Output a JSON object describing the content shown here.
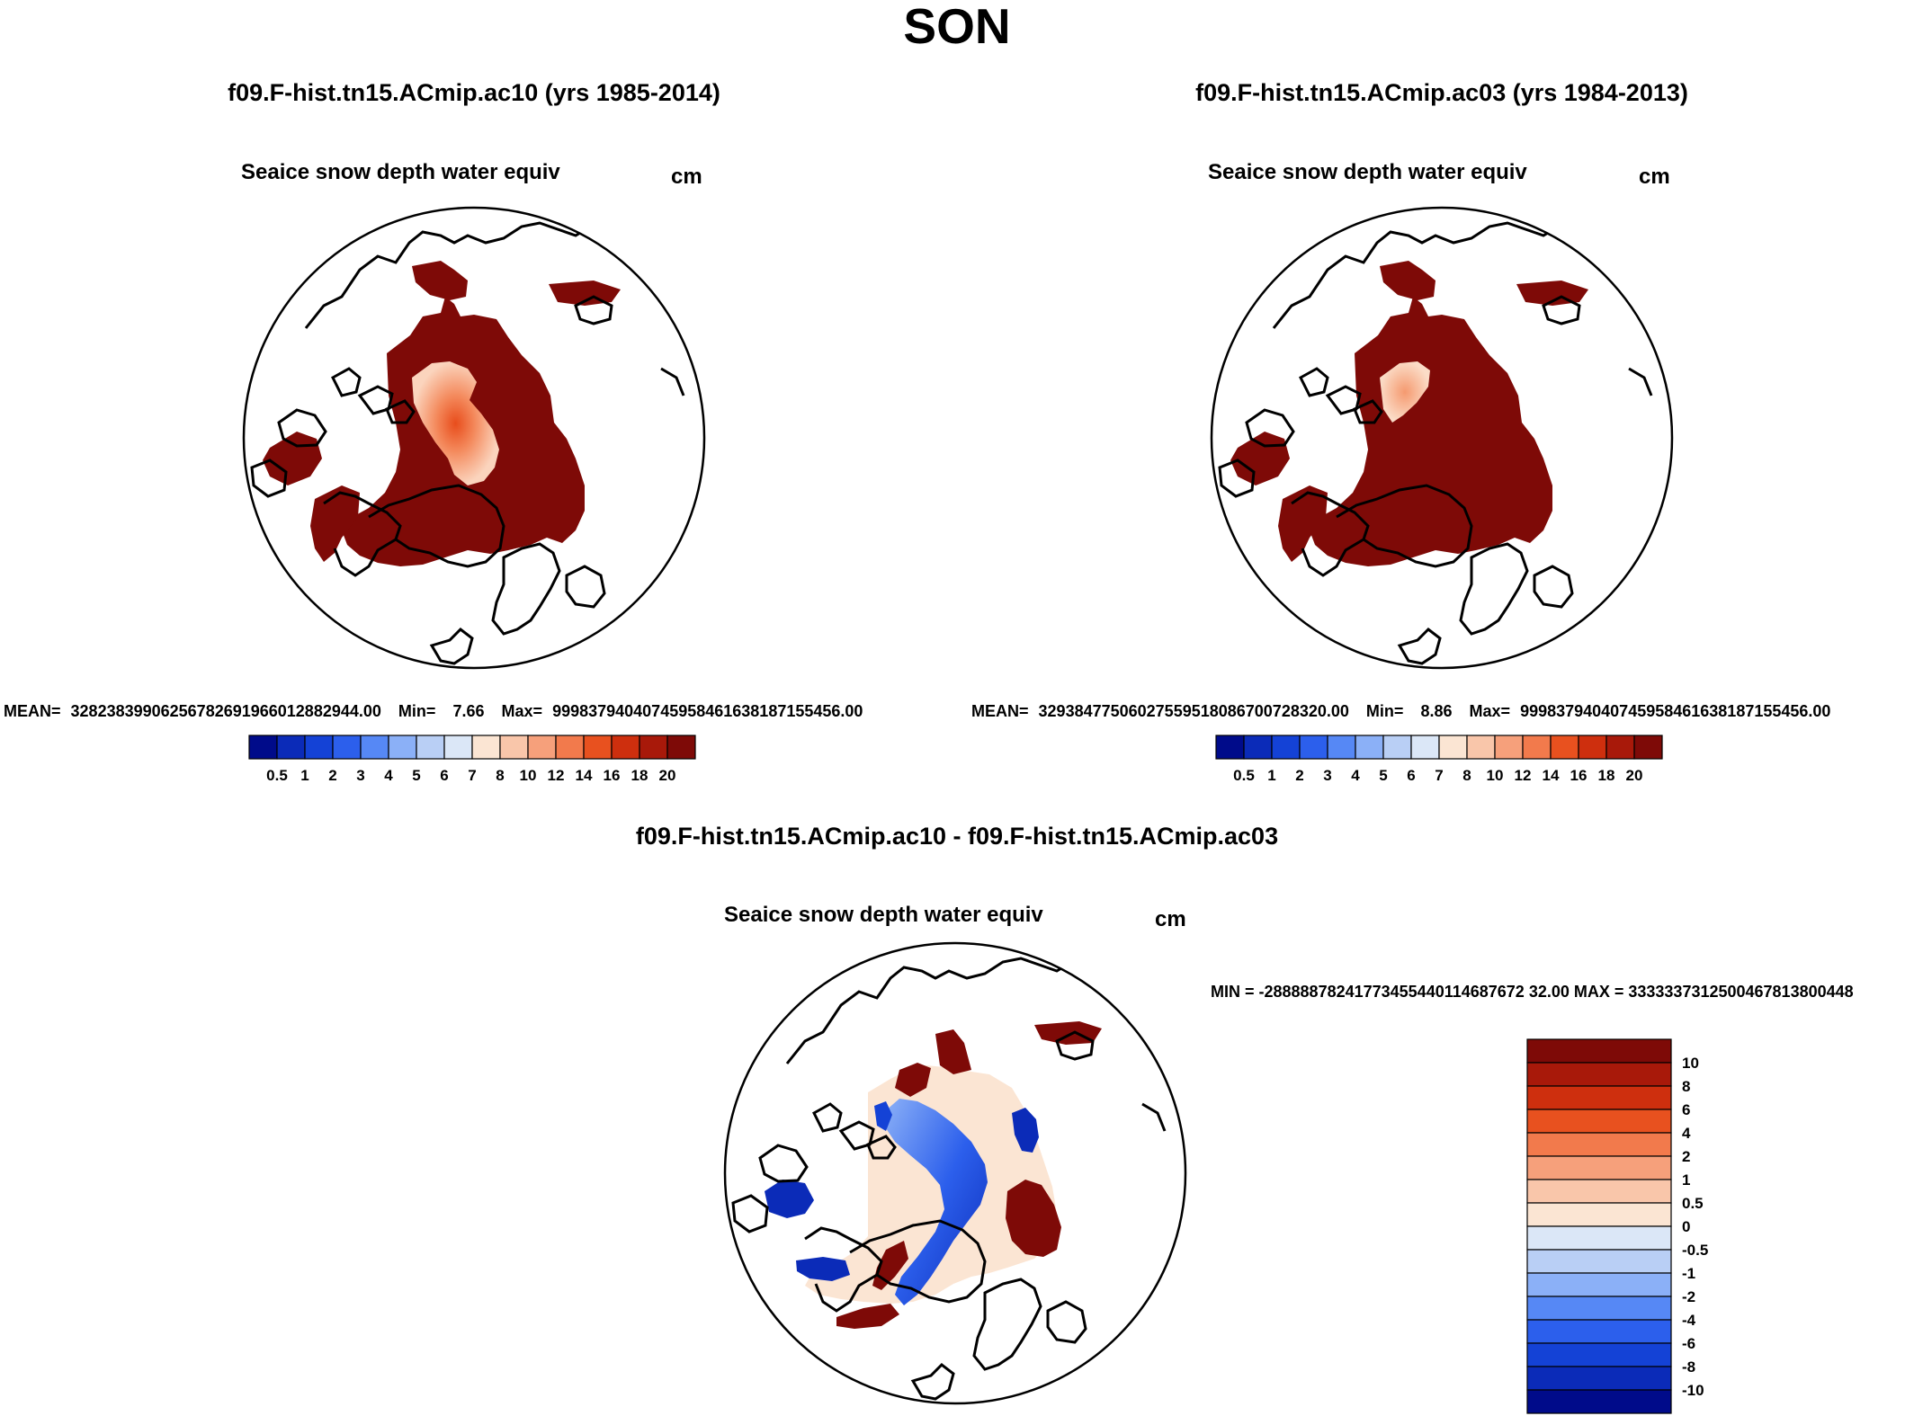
{
  "figure": {
    "title": "SON"
  },
  "colors": {
    "top_scale": [
      "#000b8a",
      "#0b2bb8",
      "#1442d6",
      "#2c5fec",
      "#5688f5",
      "#8bb0f7",
      "#b9cff5",
      "#dbe7f7",
      "#fbe5d3",
      "#f9c6aa",
      "#f6a07b",
      "#f27a4c",
      "#e8511f",
      "#ce2f0e",
      "#a8190a",
      "#7e0a07"
    ],
    "diff_scale": [
      "#000b8a",
      "#0b2bb8",
      "#1442d6",
      "#2c5fec",
      "#5688f5",
      "#8bb0f7",
      "#b9cff5",
      "#dbe7f7",
      "#fbe5d3",
      "#f9c6aa",
      "#f6a07b",
      "#f27a4c",
      "#e8511f",
      "#ce2f0e",
      "#a8190a",
      "#7e0a07"
    ],
    "land_outline": "#000000"
  },
  "chart_data": [
    {
      "type": "heatmap",
      "projection": "north-polar-stereographic",
      "panel": "top-left",
      "title": "f09.F-hist.tn15.ACmip.ac10 (yrs 1985-2014)",
      "variable": "Seaice snow depth water equiv",
      "units": "cm",
      "stats": {
        "mean_label": "MEAN=",
        "mean": "32823839906256782691966012882944.00",
        "min_label": "Min=",
        "min": "7.66",
        "max_label": "Max=",
        "max": "99983794040745958461638187155456.00"
      },
      "colorbar_levels": [
        "0.5",
        "1",
        "2",
        "3",
        "4",
        "5",
        "6",
        "7",
        "8",
        "10",
        "12",
        "14",
        "16",
        "18",
        "20"
      ],
      "dominant_range_cm": [
        20,
        99999
      ],
      "central_arctic_range_cm": [
        8,
        16
      ]
    },
    {
      "type": "heatmap",
      "projection": "north-polar-stereographic",
      "panel": "top-right",
      "title": "f09.F-hist.tn15.ACmip.ac03 (yrs 1984-2013)",
      "variable": "Seaice snow depth water equiv",
      "units": "cm",
      "stats": {
        "mean_label": "MEAN=",
        "mean": "32938477506027559518086700728320.00",
        "min_label": "Min=",
        "min": "8.86",
        "max_label": "Max=",
        "max": "99983794040745958461638187155456.00"
      },
      "colorbar_levels": [
        "0.5",
        "1",
        "2",
        "3",
        "4",
        "5",
        "6",
        "7",
        "8",
        "10",
        "12",
        "14",
        "16",
        "18",
        "20"
      ],
      "dominant_range_cm": [
        20,
        99999
      ],
      "central_arctic_range_cm": [
        8,
        14
      ]
    },
    {
      "type": "heatmap",
      "projection": "north-polar-stereographic",
      "panel": "bottom-center",
      "title": "f09.F-hist.tn15.ACmip.ac10 - f09.F-hist.tn15.ACmip.ac03",
      "variable": "Seaice snow depth water equiv",
      "units": "cm",
      "stats": {
        "text": "MIN = -28888878241773455440114687672 32.00 MAX = 3333337312500467813800448"
      },
      "stats_line": "MIN = -28888878241773455440114687672​32.00 MAX = 3333337312500467813800448",
      "colorbar_levels": [
        "10",
        "8",
        "6",
        "4",
        "2",
        "1",
        "0.5",
        "0",
        "-0.5",
        "-1",
        "-2",
        "-4",
        "-6",
        "-8",
        "-10"
      ]
    }
  ]
}
